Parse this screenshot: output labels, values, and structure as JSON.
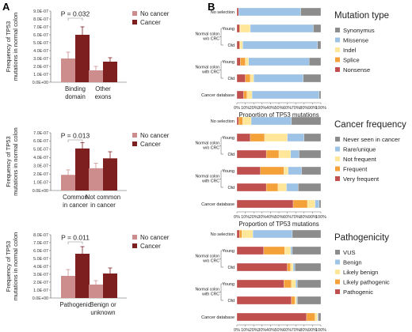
{
  "panel_a_letter": "A",
  "panel_b_letter": "B",
  "colors": {
    "no_cancer": "#cd8d8d",
    "cancer": "#7e1f1f",
    "Synonymus": "#8c8c8c",
    "Missense": "#9dc3e6",
    "Indel": "#ffe699",
    "Splice": "#f4a13a",
    "Nonsense": "#c0504d",
    "Never seen in cancer": "#8c8c8c",
    "Rare/unique": "#9dc3e6",
    "Not frequent": "#ffe699",
    "Frequent": "#f4a13a",
    "Very frequent": "#c0504d",
    "VUS": "#8c8c8c",
    "Benign": "#9dc3e6",
    "Likely benign": "#ffe699",
    "Likely pathogenic": "#f4a13a",
    "Pathogenic": "#c0504d"
  },
  "chart_data": [
    {
      "type": "bar",
      "ylabel": [
        "Frequency of TP53",
        "mutations in normal colon"
      ],
      "ylim": [
        0,
        9e-07
      ],
      "yticks": [
        "0.0E+00",
        "1.0E-07",
        "2.0E-07",
        "3.0E-07",
        "4.0E-07",
        "5.0E-07",
        "6.0E-07",
        "7.0E-07",
        "8.0E-07",
        "9.0E-07"
      ],
      "categories": [
        [
          "Binding",
          "domain"
        ],
        [
          "Other",
          "exons"
        ]
      ],
      "series": [
        {
          "name": "No cancer",
          "values": [
            3e-07,
            1.5e-07
          ],
          "err": [
            8e-08,
            5e-08
          ]
        },
        {
          "name": "Cancer",
          "values": [
            6e-07,
            2.6e-07
          ],
          "err": [
            1e-07,
            5e-08
          ]
        }
      ],
      "pvalue": "P = 0.032",
      "legend": [
        "No cancer",
        "Cancer"
      ]
    },
    {
      "type": "bar",
      "ylabel": [
        "Frequency of TP53",
        "mutations in normal colon"
      ],
      "ylim": [
        0,
        7e-07
      ],
      "yticks": [
        "0.0E+00",
        "1.0E-07",
        "2.0E-07",
        "3.0E-07",
        "4.0E-07",
        "5.0E-07",
        "6.0E-07",
        "7.0E-07"
      ],
      "categories": [
        [
          "Common",
          "in cancer"
        ],
        [
          "Not common",
          "in cancer"
        ]
      ],
      "series": [
        {
          "name": "No cancer",
          "values": [
            1.9e-07,
            2.7e-07
          ],
          "err": [
            6e-08,
            6e-08
          ]
        },
        {
          "name": "Cancer",
          "values": [
            5.1e-07,
            3.9e-07
          ],
          "err": [
            7e-08,
            8e-08
          ]
        }
      ],
      "pvalue": "P = 0.013",
      "legend": [
        "No cancer",
        "Cancer"
      ]
    },
    {
      "type": "bar",
      "ylabel": [
        "Frequency of TP53",
        "mutations in normal colon"
      ],
      "ylim": [
        0,
        8e-07
      ],
      "yticks": [
        "0.0E+00",
        "1.0E-07",
        "2.0E-07",
        "3.0E-07",
        "4.0E-07",
        "5.0E-07",
        "6.0E-07",
        "7.0E-07",
        "8.0E-07"
      ],
      "categories": [
        [
          "Pathogenic"
        ],
        [
          "Benign or",
          "unknown"
        ]
      ],
      "series": [
        {
          "name": "No cancer",
          "values": [
            2.8e-07,
            1.7e-07
          ],
          "err": [
            8e-08,
            5e-08
          ]
        },
        {
          "name": "Cancer",
          "values": [
            5.6e-07,
            3.1e-07
          ],
          "err": [
            9e-08,
            7e-08
          ]
        }
      ],
      "pvalue": "P = 0.011",
      "legend": [
        "No cancer",
        "Cancer"
      ]
    },
    {
      "type": "bar",
      "stacked": "horizontal",
      "legend_title": "Mutation type",
      "legend": [
        "Synonymus",
        "Missense",
        "Indel",
        "Splice",
        "Nonsense"
      ],
      "stack_order": [
        "Nonsense",
        "Splice",
        "Indel",
        "Missense",
        "Synonymus"
      ],
      "rows": [
        {
          "label": "No selection",
          "values": [
            2,
            0,
            0,
            74,
            24
          ]
        },
        {
          "label": "Young",
          "values": [
            3,
            1,
            12,
            75,
            9
          ]
        },
        {
          "label": "Old",
          "values": [
            3,
            1,
            3,
            89,
            4
          ]
        },
        {
          "label": "Young",
          "values": [
            4,
            6,
            4,
            72,
            14
          ]
        },
        {
          "label": "Old",
          "values": [
            10,
            6,
            4,
            59,
            21
          ]
        },
        {
          "label": "Cancer database",
          "values": [
            8,
            4,
            6,
            80,
            2
          ]
        }
      ],
      "groups": [
        {
          "label": [
            "Normal colon",
            "w/o CRC"
          ],
          "rows": [
            1,
            2
          ]
        },
        {
          "label": [
            "Normal colon",
            "with CRC"
          ],
          "rows": [
            3,
            4
          ]
        }
      ],
      "xticks": [
        "0%",
        "10%",
        "20%",
        "30%",
        "40%",
        "50%",
        "60%",
        "70%",
        "80%",
        "90%",
        "100%"
      ],
      "xlabel": "Proportion of TP53 mutations"
    },
    {
      "type": "bar",
      "stacked": "horizontal",
      "legend_title": "Cancer frequency",
      "legend": [
        "Never seen in cancer",
        "Rare/unique",
        "Not frequent",
        "Frequent",
        "Very frequent"
      ],
      "stack_order": [
        "Very frequent",
        "Frequent",
        "Not frequent",
        "Rare/unique",
        "Never seen in cancer"
      ],
      "rows": [
        {
          "label": "No selection",
          "values": [
            2,
            5,
            10,
            48,
            35
          ]
        },
        {
          "label": "Young",
          "values": [
            16,
            17,
            27,
            20,
            20
          ]
        },
        {
          "label": "Old",
          "values": [
            35,
            15,
            14,
            10,
            26
          ]
        },
        {
          "label": "Young",
          "values": [
            28,
            28,
            5,
            16,
            23
          ]
        },
        {
          "label": "Old",
          "values": [
            35,
            14,
            10,
            14,
            27
          ]
        },
        {
          "label": "Cancer database",
          "values": [
            67,
            17,
            9,
            5,
            2
          ]
        }
      ],
      "groups": [
        {
          "label": [
            "Normal colon",
            "w/o CRC"
          ],
          "rows": [
            1,
            2
          ]
        },
        {
          "label": [
            "Normal colon",
            "with CRC"
          ],
          "rows": [
            3,
            4
          ]
        }
      ],
      "xticks": [
        "0%",
        "10%",
        "20%",
        "30%",
        "40%",
        "50%",
        "60%",
        "70%",
        "80%",
        "90%",
        "100%"
      ],
      "xlabel": "Proportion of TP53 mutations"
    },
    {
      "type": "bar",
      "stacked": "horizontal",
      "legend_title": "Pathogenicity",
      "legend": [
        "VUS",
        "Benign",
        "Likely benign",
        "Likely pathogenic",
        "Pathogenic"
      ],
      "stack_order": [
        "Pathogenic",
        "Likely pathogenic",
        "Likely benign",
        "Benign",
        "VUS"
      ],
      "rows": [
        {
          "label": "No selection",
          "values": [
            3,
            3,
            13,
            47,
            34
          ]
        },
        {
          "label": "Young",
          "values": [
            32,
            25,
            7,
            2,
            34
          ]
        },
        {
          "label": "Old",
          "values": [
            60,
            4,
            3,
            2,
            31
          ]
        },
        {
          "label": "Young",
          "values": [
            56,
            9,
            5,
            2,
            28
          ]
        },
        {
          "label": "Old",
          "values": [
            65,
            4,
            2,
            1,
            28
          ]
        },
        {
          "label": "Cancer database",
          "values": [
            83,
            10,
            3,
            1,
            3
          ]
        }
      ],
      "groups": [
        {
          "label": [
            "Normal colon",
            "w/o CRC"
          ],
          "rows": [
            1,
            2
          ]
        },
        {
          "label": [
            "Normal colon",
            "with CRC"
          ],
          "rows": [
            3,
            4
          ]
        }
      ],
      "xticks": [
        "0%",
        "10%",
        "20%",
        "30%",
        "40%",
        "50%",
        "60%",
        "70%",
        "80%",
        "90%",
        "100%"
      ],
      "xlabel": "Proportion of TP53 mutations"
    }
  ]
}
